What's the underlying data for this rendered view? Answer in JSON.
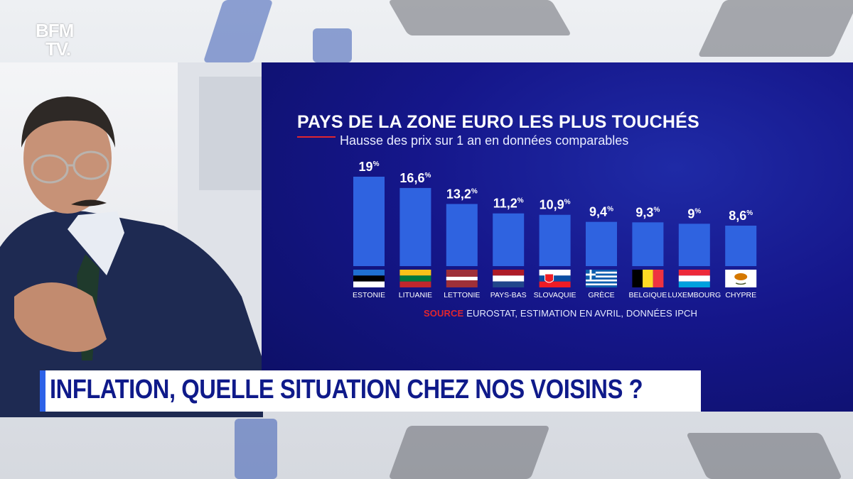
{
  "channel": {
    "logo_line1": "BFM",
    "logo_line2": "TV."
  },
  "banner": {
    "headline": "INFLATION, QUELLE SITUATION CHEZ NOS VOISINS ?"
  },
  "chart_data": {
    "type": "bar",
    "title": "PAYS DE LA ZONE EURO LES PLUS TOUCHÉS",
    "subtitle": "Hausse des prix sur 1 an en données comparables",
    "categories": [
      "ESTONIE",
      "LITUANIE",
      "LETTONIE",
      "PAYS-BAS",
      "SLOVAQUIE",
      "GRÈCE",
      "BELGIQUE",
      "LUXEMBOURG",
      "CHYPRE"
    ],
    "values": [
      19,
      16.6,
      13.2,
      11.2,
      10.9,
      9.4,
      9.3,
      9,
      8.6
    ],
    "value_labels": [
      "19",
      "16,6",
      "13,2",
      "11,2",
      "10,9",
      "9,4",
      "9,3",
      "9",
      "8,6"
    ],
    "unit": "%",
    "ylim": [
      0,
      19
    ],
    "bar_color": "#2f63e0",
    "flags": [
      "estonia-flag",
      "lithuania-flag",
      "latvia-flag",
      "netherlands-flag",
      "slovakia-flag",
      "greece-flag",
      "belgium-flag",
      "luxembourg-flag",
      "cyprus-flag"
    ],
    "source_label": "SOURCE",
    "source_text": "EUROSTAT, ESTIMATION EN AVRIL, DONNÉES IPCH"
  }
}
